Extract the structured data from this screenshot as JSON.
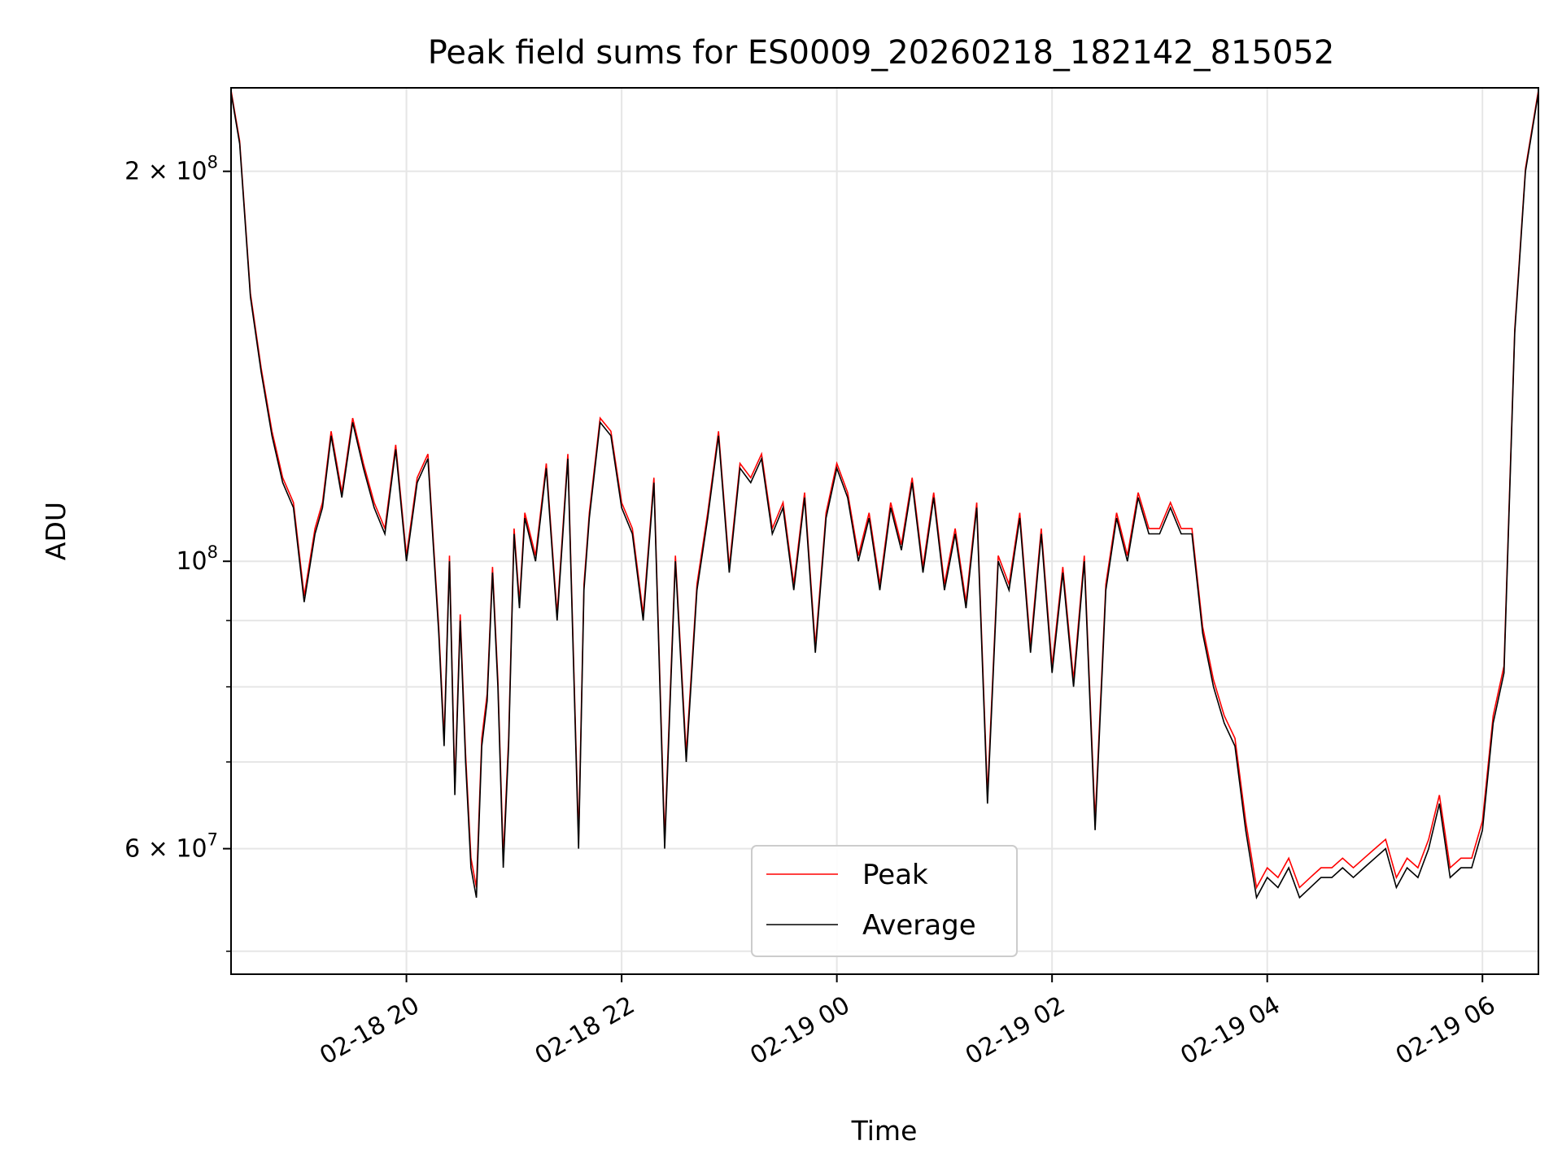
{
  "chart_data": {
    "type": "line",
    "title": "Peak field sums for ES0009_20260218_182142_815052",
    "xlabel": "Time",
    "ylabel": "ADU",
    "yscale": "log",
    "grid": true,
    "x_range_hours": [
      18.37,
      30.52
    ],
    "ylim": [
      48000000,
      232000000
    ],
    "x_ticks": [
      {
        "hour": 20,
        "label": "02-18 20"
      },
      {
        "hour": 22,
        "label": "02-18 22"
      },
      {
        "hour": 24,
        "label": "02-19 00"
      },
      {
        "hour": 26,
        "label": "02-19 02"
      },
      {
        "hour": 28,
        "label": "02-19 04"
      },
      {
        "hour": 30,
        "label": "02-19 06"
      }
    ],
    "y_major_ticks": [
      {
        "value": 60000000,
        "base": "6 × 10",
        "exp": "7"
      },
      {
        "value": 100000000,
        "base": "10",
        "exp": "8"
      },
      {
        "value": 200000000,
        "base": "2 × 10",
        "exp": "8"
      }
    ],
    "y_minor_ticks": [
      50000000,
      70000000,
      80000000,
      90000000
    ],
    "legend": {
      "position": "lower-center",
      "entries": [
        "Peak",
        "Average"
      ]
    },
    "series": [
      {
        "name": "Peak",
        "color": "#ff0000"
      },
      {
        "name": "Average",
        "color": "#000000"
      }
    ],
    "x_hours": [
      18.37,
      18.45,
      18.55,
      18.65,
      18.75,
      18.85,
      18.95,
      19.05,
      19.15,
      19.22,
      19.3,
      19.4,
      19.5,
      19.6,
      19.7,
      19.8,
      19.9,
      20.0,
      20.1,
      20.2,
      20.3,
      20.35,
      20.4,
      20.45,
      20.5,
      20.55,
      20.6,
      20.65,
      20.7,
      20.75,
      20.8,
      20.85,
      20.9,
      20.95,
      21.0,
      21.05,
      21.1,
      21.2,
      21.3,
      21.4,
      21.5,
      21.6,
      21.65,
      21.7,
      21.8,
      21.9,
      22.0,
      22.1,
      22.2,
      22.3,
      22.4,
      22.5,
      22.6,
      22.7,
      22.8,
      22.9,
      23.0,
      23.1,
      23.2,
      23.3,
      23.4,
      23.5,
      23.6,
      23.7,
      23.8,
      23.9,
      24.0,
      24.1,
      24.2,
      24.3,
      24.4,
      24.5,
      24.6,
      24.7,
      24.8,
      24.9,
      25.0,
      25.1,
      25.2,
      25.3,
      25.4,
      25.5,
      25.6,
      25.7,
      25.8,
      25.9,
      26.0,
      26.1,
      26.2,
      26.3,
      26.4,
      26.5,
      26.6,
      26.7,
      26.8,
      26.9,
      27.0,
      27.1,
      27.2,
      27.3,
      27.4,
      27.5,
      27.6,
      27.7,
      27.8,
      27.9,
      28.0,
      28.1,
      28.2,
      28.3,
      28.4,
      28.5,
      28.6,
      28.7,
      28.8,
      28.9,
      29.0,
      29.1,
      29.2,
      29.3,
      29.4,
      29.5,
      29.6,
      29.7,
      29.8,
      29.9,
      30.0,
      30.1,
      30.2,
      30.3,
      30.4,
      30.52
    ],
    "average_values": [
      230000000,
      210000000,
      160000000,
      140000000,
      125000000,
      115000000,
      110000000,
      93000000,
      105000000,
      110000000,
      125000000,
      112000000,
      128000000,
      118000000,
      110000000,
      105000000,
      122000000,
      100000000,
      115000000,
      120000000,
      88000000,
      72000000,
      100000000,
      66000000,
      90000000,
      70000000,
      58000000,
      55000000,
      72000000,
      78000000,
      98000000,
      80000000,
      58000000,
      72000000,
      105000000,
      92000000,
      108000000,
      100000000,
      118000000,
      90000000,
      120000000,
      60000000,
      95000000,
      108000000,
      128000000,
      125000000,
      110000000,
      105000000,
      90000000,
      115000000,
      60000000,
      100000000,
      70000000,
      95000000,
      108000000,
      125000000,
      98000000,
      118000000,
      115000000,
      120000000,
      105000000,
      110000000,
      95000000,
      112000000,
      85000000,
      108000000,
      118000000,
      112000000,
      100000000,
      108000000,
      95000000,
      110000000,
      102000000,
      115000000,
      98000000,
      112000000,
      95000000,
      105000000,
      92000000,
      110000000,
      65000000,
      100000000,
      95000000,
      108000000,
      85000000,
      105000000,
      82000000,
      98000000,
      80000000,
      100000000,
      62000000,
      95000000,
      108000000,
      100000000,
      112000000,
      105000000,
      105000000,
      110000000,
      105000000,
      105000000,
      88000000,
      80000000,
      75000000,
      72000000,
      62000000,
      55000000,
      57000000,
      56000000,
      58000000,
      55000000,
      56000000,
      57000000,
      57000000,
      58000000,
      57000000,
      58000000,
      59000000,
      60000000,
      56000000,
      58000000,
      57000000,
      60000000,
      65000000,
      57000000,
      58000000,
      58000000,
      62000000,
      75000000,
      82000000,
      150000000,
      200000000,
      230000000
    ],
    "peak_values": [
      231000000,
      211000000,
      161000000,
      141000000,
      126000000,
      116000000,
      111000000,
      94000000,
      106000000,
      111000000,
      126000000,
      113000000,
      129000000,
      119000000,
      111000000,
      106000000,
      123000000,
      101000000,
      116000000,
      121000000,
      89000000,
      73000000,
      101000000,
      67000000,
      91000000,
      71000000,
      59000000,
      56000000,
      73000000,
      79000000,
      99000000,
      81000000,
      59000000,
      73000000,
      106000000,
      93000000,
      109000000,
      101000000,
      119000000,
      91000000,
      121000000,
      61000000,
      96000000,
      109000000,
      129000000,
      126000000,
      111000000,
      106000000,
      91000000,
      116000000,
      61000000,
      101000000,
      71000000,
      96000000,
      109000000,
      126000000,
      99000000,
      119000000,
      116000000,
      121000000,
      106000000,
      111000000,
      96000000,
      113000000,
      86000000,
      109000000,
      119000000,
      113000000,
      101000000,
      109000000,
      96000000,
      111000000,
      103000000,
      116000000,
      99000000,
      113000000,
      96000000,
      106000000,
      93000000,
      111000000,
      66000000,
      101000000,
      96000000,
      109000000,
      86000000,
      106000000,
      83000000,
      99000000,
      81000000,
      101000000,
      63000000,
      96000000,
      109000000,
      101000000,
      113000000,
      106000000,
      106000000,
      111000000,
      106000000,
      106000000,
      89000000,
      81000000,
      76000000,
      73000000,
      63000000,
      56000000,
      58000000,
      57000000,
      59000000,
      56000000,
      57000000,
      58000000,
      58000000,
      59000000,
      58000000,
      59000000,
      60000000,
      61000000,
      57000000,
      59000000,
      58000000,
      61000000,
      66000000,
      58000000,
      59000000,
      59000000,
      63000000,
      76000000,
      83000000,
      151000000,
      201000000,
      231000000
    ]
  }
}
